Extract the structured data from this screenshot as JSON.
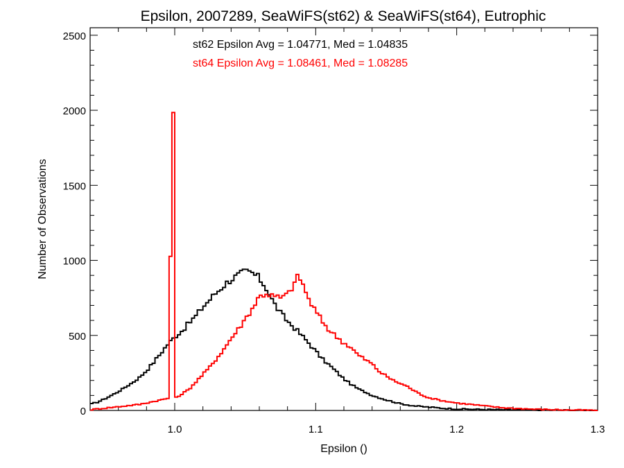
{
  "chart_data": {
    "type": "histogram-step",
    "title": "Epsilon, 2007289, SeaWiFS(st62) & SeaWiFS(st64), Eutrophic",
    "xlabel": "Epsilon ()",
    "ylabel": "Number of Observations",
    "xlim": [
      0.94,
      1.3
    ],
    "ylim": [
      0,
      2550
    ],
    "x_ticks": [
      1.0,
      1.1,
      1.2,
      1.3
    ],
    "x_tick_labels": [
      "1.0",
      "1.1",
      "1.2",
      "1.3"
    ],
    "y_ticks": [
      0,
      500,
      1000,
      1500,
      2000,
      2500
    ],
    "y_tick_labels": [
      "0",
      "500",
      "1000",
      "1500",
      "2000",
      "2500"
    ],
    "grid": false,
    "bin_width": 0.002,
    "annotations": [
      {
        "text": "st62 Epsilon Avg = 1.04771, Med = 1.04835",
        "color": "#000000"
      },
      {
        "text": "st64 Epsilon Avg = 1.08461, Med = 1.08285",
        "color": "#ff0000"
      }
    ],
    "series": [
      {
        "color": "#000000",
        "x": [
          0.94,
          0.945,
          0.95,
          0.955,
          0.96,
          0.965,
          0.97,
          0.975,
          0.98,
          0.985,
          0.99,
          0.995,
          1.0,
          1.005,
          1.01,
          1.015,
          1.02,
          1.025,
          1.03,
          1.035,
          1.04,
          1.045,
          1.05,
          1.055,
          1.06,
          1.065,
          1.07,
          1.075,
          1.08,
          1.085,
          1.09,
          1.095,
          1.1,
          1.105,
          1.11,
          1.115,
          1.12,
          1.125,
          1.13,
          1.14,
          1.15,
          1.16,
          1.17,
          1.18,
          1.19,
          1.2,
          1.21,
          1.22,
          1.25,
          1.3
        ],
        "y": [
          40,
          55,
          75,
          100,
          125,
          155,
          185,
          220,
          265,
          320,
          380,
          440,
          490,
          530,
          580,
          630,
          690,
          740,
          790,
          835,
          875,
          900,
          925,
          915,
          880,
          815,
          720,
          650,
          595,
          550,
          500,
          450,
          395,
          340,
          300,
          255,
          210,
          175,
          145,
          100,
          70,
          45,
          30,
          22,
          15,
          10,
          8,
          6,
          3,
          1
        ]
      },
      {
        "color": "#ff0000",
        "x": [
          0.94,
          0.945,
          0.95,
          0.955,
          0.96,
          0.965,
          0.97,
          0.975,
          0.98,
          0.985,
          0.99,
          0.995,
          0.999,
          1.001,
          1.003,
          1.005,
          1.01,
          1.015,
          1.02,
          1.025,
          1.03,
          1.035,
          1.04,
          1.045,
          1.05,
          1.055,
          1.06,
          1.065,
          1.07,
          1.075,
          1.08,
          1.085,
          1.088,
          1.09,
          1.095,
          1.1,
          1.105,
          1.11,
          1.115,
          1.12,
          1.125,
          1.13,
          1.135,
          1.14,
          1.145,
          1.15,
          1.155,
          1.16,
          1.165,
          1.17,
          1.175,
          1.18,
          1.19,
          1.2,
          1.21,
          1.22,
          1.23,
          1.24,
          1.25,
          1.26,
          1.27,
          1.28,
          1.29,
          1.3
        ],
        "y": [
          5,
          10,
          15,
          20,
          25,
          30,
          35,
          40,
          50,
          60,
          70,
          80,
          1985,
          85,
          95,
          110,
          140,
          190,
          240,
          290,
          350,
          410,
          480,
          540,
          610,
          680,
          760,
          780,
          760,
          750,
          770,
          850,
          900,
          860,
          740,
          660,
          590,
          530,
          490,
          450,
          420,
          370,
          340,
          310,
          260,
          230,
          200,
          180,
          160,
          130,
          105,
          85,
          65,
          50,
          40,
          30,
          20,
          15,
          10,
          7,
          5,
          3,
          2,
          1
        ]
      }
    ]
  }
}
